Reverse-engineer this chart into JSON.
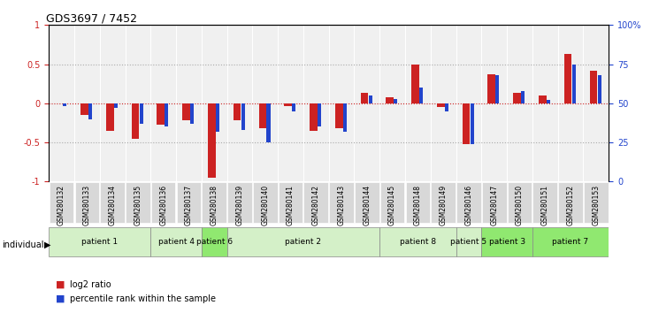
{
  "title": "GDS3697 / 7452",
  "samples": [
    "GSM280132",
    "GSM280133",
    "GSM280134",
    "GSM280135",
    "GSM280136",
    "GSM280137",
    "GSM280138",
    "GSM280139",
    "GSM280140",
    "GSM280141",
    "GSM280142",
    "GSM280143",
    "GSM280144",
    "GSM280145",
    "GSM280148",
    "GSM280149",
    "GSM280146",
    "GSM280147",
    "GSM280150",
    "GSM280151",
    "GSM280152",
    "GSM280153"
  ],
  "log2_ratio": [
    0.0,
    -0.15,
    -0.35,
    -0.45,
    -0.27,
    -0.22,
    -0.95,
    -0.22,
    -0.32,
    -0.04,
    -0.35,
    -0.32,
    0.13,
    0.08,
    0.5,
    -0.05,
    -0.52,
    0.37,
    0.13,
    0.1,
    0.63,
    0.42
  ],
  "percentile": [
    48,
    40,
    47,
    37,
    35,
    37,
    32,
    33,
    25,
    45,
    35,
    32,
    55,
    53,
    60,
    45,
    24,
    68,
    58,
    52,
    75,
    68
  ],
  "patients": [
    {
      "label": "patient 1",
      "start": 0,
      "end": 4,
      "color": "#d4f0c8"
    },
    {
      "label": "patient 4",
      "start": 4,
      "end": 6,
      "color": "#d4f0c8"
    },
    {
      "label": "patient 6",
      "start": 6,
      "end": 7,
      "color": "#90e870"
    },
    {
      "label": "patient 2",
      "start": 7,
      "end": 13,
      "color": "#d4f0c8"
    },
    {
      "label": "patient 8",
      "start": 13,
      "end": 16,
      "color": "#d4f0c8"
    },
    {
      "label": "patient 5",
      "start": 16,
      "end": 17,
      "color": "#d4f0c8"
    },
    {
      "label": "patient 3",
      "start": 17,
      "end": 19,
      "color": "#90e870"
    },
    {
      "label": "patient 7",
      "start": 19,
      "end": 22,
      "color": "#90e870"
    }
  ],
  "ylim": [
    -1,
    1
  ],
  "y2lim": [
    0,
    100
  ],
  "bar_color_red": "#cc2222",
  "bar_color_blue": "#2244cc",
  "bg_plot": "#f0f0f0",
  "dotted_color": "#aaaaaa",
  "red_line_color": "#cc2222"
}
